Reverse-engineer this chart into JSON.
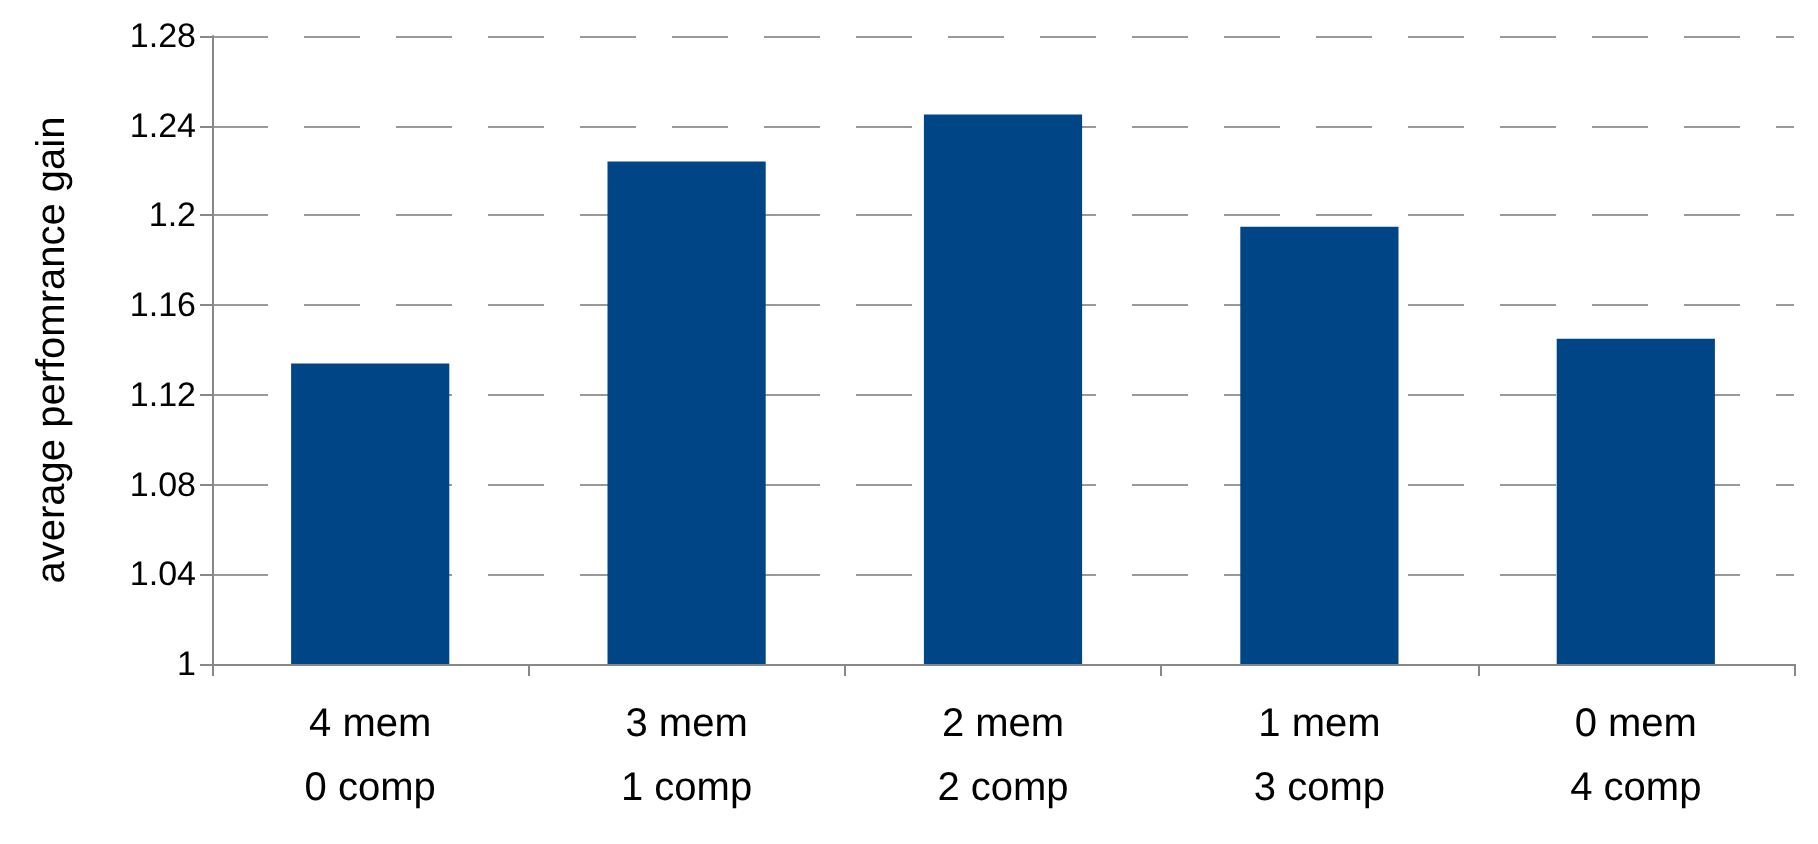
{
  "chart_data": {
    "type": "bar",
    "ylabel": "average perfomrance gain",
    "categories": [
      "4 mem\n0 comp",
      "3 mem\n1 comp",
      "2 mem\n2 comp",
      "1 mem\n3 comp",
      "0 mem\n4 comp"
    ],
    "values": [
      1.134,
      1.224,
      1.245,
      1.195,
      1.145
    ],
    "color": "#004586",
    "ylim": [
      1,
      1.28
    ],
    "yticks": [
      1,
      1.04,
      1.08,
      1.12,
      1.16,
      1.2,
      1.24,
      1.28
    ],
    "grid": "y"
  }
}
